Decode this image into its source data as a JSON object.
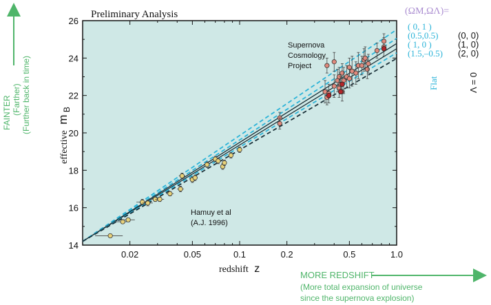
{
  "chart_data": {
    "type": "scatter",
    "title": "Preliminary Analysis",
    "xlabel": "redshift",
    "xlabel_var": "z",
    "ylabel": "effective",
    "ylabel_var": "m",
    "ylabel_sub": "B",
    "x_scale": "log",
    "xlim": [
      0.01,
      1.0
    ],
    "ylim": [
      14,
      26
    ],
    "x_ticks": [
      0.02,
      0.05,
      0.1,
      0.2,
      0.5,
      1.0
    ],
    "x_tick_labels": [
      "0.02",
      "0.05",
      "0.1",
      "0.2",
      "0.5",
      "1.0"
    ],
    "y_ticks": [
      14,
      16,
      18,
      20,
      22,
      24,
      26
    ],
    "y_tick_labels": [
      "14",
      "16",
      "18",
      "20",
      "22",
      "24",
      "26"
    ],
    "grid": false,
    "plot_background": "#cfe8e6",
    "annotations": {
      "project": [
        "Supernova",
        "Cosmology",
        "Project"
      ],
      "hamuy": [
        "Hamuy et al",
        "(A.J. 1996)"
      ]
    },
    "legend": {
      "header": "(Ωₘ,ΩΛ)=",
      "header_plain": "(ΩM,ΩΛ)=",
      "flat_entries": [
        "( 0,   1 )",
        "(0.5,0.5)",
        "( 1,    0 )",
        "(1.5,–0.5)"
      ],
      "lambda_zero_entries": [
        "(0, 0)",
        "(1, 0)",
        "(2, 0)"
      ],
      "flat_label": "Flat",
      "lambda_zero_label": "Λ = 0",
      "placement": "top-right, outside plot"
    },
    "models": [
      {
        "name": "(0, 1)",
        "family": "Flat",
        "style": "dashed",
        "color": "#2ab3d8",
        "points": [
          [
            0.01,
            14.2
          ],
          [
            1.0,
            25.52
          ]
        ]
      },
      {
        "name": "(0.5,0.5)",
        "family": "Flat",
        "style": "dashed",
        "color": "#2ab3d8",
        "points": [
          [
            0.01,
            14.2
          ],
          [
            1.0,
            25.05
          ]
        ]
      },
      {
        "name": "(0, 0)",
        "family": "Λ = 0",
        "style": "solid",
        "color": "#1a3038",
        "points": [
          [
            0.01,
            14.2
          ],
          [
            1.0,
            24.78
          ]
        ]
      },
      {
        "name": "(1, 0)",
        "family": "Flat / Λ = 0",
        "style": "solid",
        "color": "#1a3038",
        "points": [
          [
            0.01,
            14.2
          ],
          [
            1.0,
            24.5
          ]
        ]
      },
      {
        "name": "(1.5,–0.5)",
        "family": "Flat",
        "style": "dashed",
        "color": "#2ab3d8",
        "points": [
          [
            0.01,
            14.2
          ],
          [
            1.0,
            24.28
          ]
        ]
      },
      {
        "name": "(2, 0)",
        "family": "Λ = 0",
        "style": "dashed",
        "color": "#1a3038",
        "points": [
          [
            0.01,
            14.2
          ],
          [
            1.0,
            23.98
          ]
        ]
      }
    ],
    "series": [
      {
        "name": "Hamuy et al (A.J. 1996)",
        "marker_fill": "#e8d27a",
        "points": [
          {
            "x": 0.015,
            "y": 14.5,
            "xerr": 0.003,
            "yerr": 0.08
          },
          {
            "x": 0.018,
            "y": 15.25,
            "xerr": 0.002,
            "yerr": 0.1
          },
          {
            "x": 0.0195,
            "y": 15.35,
            "xerr": 0.002,
            "yerr": 0.1
          },
          {
            "x": 0.024,
            "y": 16.3,
            "xerr": 0.002,
            "yerr": 0.15
          },
          {
            "x": 0.026,
            "y": 16.25,
            "xerr": 0.002,
            "yerr": 0.15
          },
          {
            "x": 0.029,
            "y": 16.45,
            "xerr": 0.002,
            "yerr": 0.12
          },
          {
            "x": 0.031,
            "y": 16.45,
            "xerr": 0.002,
            "yerr": 0.12
          },
          {
            "x": 0.036,
            "y": 16.75,
            "xerr": 0.002,
            "yerr": 0.12
          },
          {
            "x": 0.043,
            "y": 17.7,
            "xerr": 0.002,
            "yerr": 0.15
          },
          {
            "x": 0.042,
            "y": 17.0,
            "xerr": 0.002,
            "yerr": 0.15
          },
          {
            "x": 0.05,
            "y": 17.5,
            "xerr": 0.002,
            "yerr": 0.15
          },
          {
            "x": 0.052,
            "y": 17.6,
            "xerr": 0.002,
            "yerr": 0.15
          },
          {
            "x": 0.062,
            "y": 18.3,
            "xerr": 0.002,
            "yerr": 0.15
          },
          {
            "x": 0.07,
            "y": 18.6,
            "xerr": 0.002,
            "yerr": 0.15
          },
          {
            "x": 0.073,
            "y": 18.5,
            "xerr": 0.002,
            "yerr": 0.15
          },
          {
            "x": 0.078,
            "y": 18.2,
            "xerr": 0.002,
            "yerr": 0.15
          },
          {
            "x": 0.08,
            "y": 18.4,
            "xerr": 0.002,
            "yerr": 0.15
          },
          {
            "x": 0.088,
            "y": 18.8,
            "xerr": 0.002,
            "yerr": 0.15
          },
          {
            "x": 0.1,
            "y": 19.1,
            "xerr": 0.002,
            "yerr": 0.15
          }
        ]
      },
      {
        "name": "Supernova Cosmology Project",
        "marker_fill": "#e0897c",
        "points": [
          {
            "x": 0.18,
            "y": 20.8,
            "yerr": 0.3
          },
          {
            "x": 0.18,
            "y": 20.5,
            "yerr": 0.3
          },
          {
            "x": 0.35,
            "y": 22.2,
            "yerr": 0.6
          },
          {
            "x": 0.36,
            "y": 21.9,
            "yerr": 0.4
          },
          {
            "x": 0.37,
            "y": 22.1,
            "yerr": 0.5
          },
          {
            "x": 0.36,
            "y": 23.6,
            "yerr": 0.4
          },
          {
            "x": 0.4,
            "y": 22.5,
            "yerr": 0.6
          },
          {
            "x": 0.4,
            "y": 23.8,
            "yerr": 0.5
          },
          {
            "x": 0.42,
            "y": 22.8,
            "yerr": 0.6
          },
          {
            "x": 0.43,
            "y": 22.4,
            "yerr": 0.5
          },
          {
            "x": 0.43,
            "y": 23.0,
            "yerr": 0.5
          },
          {
            "x": 0.44,
            "y": 22.6,
            "yerr": 0.4
          },
          {
            "x": 0.45,
            "y": 23.2,
            "yerr": 0.5
          },
          {
            "x": 0.45,
            "y": 22.2,
            "yerr": 0.5
          },
          {
            "x": 0.46,
            "y": 22.8,
            "yerr": 0.7
          },
          {
            "x": 0.48,
            "y": 23.0,
            "yerr": 0.6
          },
          {
            "x": 0.5,
            "y": 23.5,
            "yerr": 0.5
          },
          {
            "x": 0.5,
            "y": 22.9,
            "yerr": 0.5
          },
          {
            "x": 0.52,
            "y": 23.3,
            "yerr": 0.8
          },
          {
            "x": 0.55,
            "y": 23.2,
            "yerr": 0.6
          },
          {
            "x": 0.57,
            "y": 23.6,
            "yerr": 0.7
          },
          {
            "x": 0.6,
            "y": 23.6,
            "yerr": 0.5
          },
          {
            "x": 0.62,
            "y": 23.9,
            "yerr": 0.6
          },
          {
            "x": 0.63,
            "y": 24.0,
            "yerr": 0.6
          },
          {
            "x": 0.65,
            "y": 23.4,
            "yerr": 0.5
          },
          {
            "x": 0.66,
            "y": 23.7,
            "yerr": 0.5
          },
          {
            "x": 0.75,
            "y": 24.4,
            "yerr": 0.4
          },
          {
            "x": 0.83,
            "y": 24.6,
            "yerr": 0.5
          },
          {
            "x": 0.83,
            "y": 24.9,
            "yerr": 0.4
          }
        ]
      }
    ],
    "highlighted_points": [
      {
        "x": 0.37,
        "y": 22.0
      },
      {
        "x": 0.44,
        "y": 22.2
      },
      {
        "x": 0.45,
        "y": 22.6
      },
      {
        "x": 0.83,
        "y": 24.5
      }
    ]
  },
  "side_labels": {
    "fainter": [
      "FAINTER",
      "(Farther)",
      "(Further back in time)"
    ],
    "redshift_title": "MORE REDSHIFT",
    "redshift_lines": [
      "(More total expansion of universe",
      "since the supernova explosion)"
    ]
  },
  "colors": {
    "annotation_green": "#4fb56a",
    "header_purple": "#a98bd0",
    "flat_cyan": "#2ab3d8",
    "lambda_black": "#111111",
    "frame": "#111111"
  }
}
